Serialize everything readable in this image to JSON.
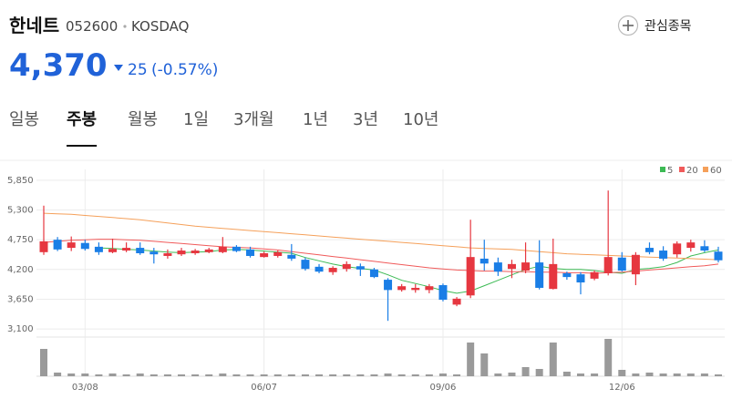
{
  "header": {
    "name": "한네트",
    "code": "052600",
    "market": "KOSDAQ",
    "watch": "관심종목",
    "price": "4,370",
    "change": "25",
    "change_pct": "(-0.57%)"
  },
  "tabs": {
    "items": [
      "일봉",
      "주봉",
      "월봉",
      "1일",
      "3개월",
      "1년",
      "3년",
      "10년"
    ],
    "selected": 1
  },
  "chart_data": {
    "type": "candlestick",
    "categories": [
      null,
      null,
      null,
      "03/08",
      null,
      null,
      null,
      null,
      null,
      null,
      null,
      null,
      null,
      null,
      null,
      null,
      "06/07",
      null,
      null,
      null,
      null,
      null,
      null,
      null,
      null,
      null,
      null,
      null,
      null,
      "09/06",
      null,
      null,
      null,
      null,
      null,
      null,
      null,
      null,
      null,
      null,
      null,
      null,
      "12/06",
      null,
      null,
      null,
      null,
      null,
      null,
      null
    ],
    "open": [
      4520,
      4750,
      4600,
      4690,
      4620,
      4520,
      4550,
      4600,
      4530,
      4450,
      4480,
      4500,
      4520,
      4520,
      4620,
      4570,
      4430,
      4450,
      4470,
      4380,
      4250,
      4150,
      4210,
      4260,
      4200,
      4010,
      3820,
      3820,
      3820,
      3910,
      3550,
      3720,
      4400,
      4330,
      4210,
      4180,
      4330,
      3840,
      4130,
      4110,
      4030,
      4130,
      4420,
      4110,
      4600,
      4550,
      4480,
      4600,
      4630,
      4530
    ],
    "high": [
      5380,
      4800,
      4810,
      4750,
      4700,
      4770,
      4700,
      4700,
      4600,
      4570,
      4600,
      4580,
      4600,
      4800,
      4650,
      4620,
      4530,
      4550,
      4670,
      4420,
      4300,
      4260,
      4350,
      4310,
      4230,
      4040,
      3930,
      3930,
      3930,
      3940,
      3690,
      5120,
      4750,
      4420,
      4380,
      4700,
      4740,
      4770,
      4160,
      4150,
      4180,
      5660,
      4520,
      4520,
      4700,
      4630,
      4720,
      4750,
      4740,
      4620
    ],
    "low": [
      4470,
      4540,
      4540,
      4550,
      4470,
      4500,
      4520,
      4470,
      4310,
      4400,
      4450,
      4470,
      4500,
      4500,
      4520,
      4420,
      4420,
      4420,
      4360,
      4180,
      4130,
      4100,
      4160,
      4080,
      4040,
      3250,
      3790,
      3770,
      3760,
      3610,
      3520,
      3670,
      4180,
      4080,
      4040,
      4130,
      3830,
      3830,
      4010,
      3740,
      4000,
      4090,
      4160,
      3910,
      4480,
      4360,
      4420,
      4530,
      4520,
      4330
    ],
    "close": [
      4720,
      4570,
      4700,
      4580,
      4520,
      4580,
      4600,
      4500,
      4480,
      4500,
      4550,
      4550,
      4570,
      4620,
      4540,
      4450,
      4500,
      4520,
      4400,
      4210,
      4160,
      4230,
      4300,
      4200,
      4060,
      3820,
      3890,
      3860,
      3890,
      3640,
      3660,
      4430,
      4310,
      4160,
      4300,
      4330,
      3860,
      4300,
      4060,
      3960,
      4150,
      4430,
      4180,
      4470,
      4520,
      4400,
      4680,
      4700,
      4550,
      4370
    ],
    "up_color": "#e63740",
    "down_color": "#1a7ee6",
    "series": [
      {
        "name": "5",
        "color": "#3cba54",
        "values": [
          null,
          null,
          null,
          null,
          4600,
          4590,
          4570,
          4560,
          4540,
          4520,
          4510,
          4520,
          4530,
          4560,
          4570,
          4560,
          4540,
          4520,
          4500,
          4420,
          4360,
          4300,
          4250,
          4220,
          4190,
          4100,
          4000,
          3940,
          3880,
          3810,
          3760,
          3800,
          3900,
          4000,
          4100,
          4200,
          4260,
          4220,
          4200,
          4200,
          4180,
          4150,
          4130,
          4200,
          4220,
          4250,
          4330,
          4450,
          4510,
          4560
        ]
      },
      {
        "name": "20",
        "color": "#f05a5a",
        "values": [
          4700,
          4720,
          4740,
          4750,
          4760,
          4760,
          4750,
          4740,
          4720,
          4700,
          4680,
          4660,
          4640,
          4620,
          4610,
          4600,
          4580,
          4560,
          4530,
          4500,
          4470,
          4440,
          4410,
          4380,
          4350,
          4320,
          4290,
          4260,
          4230,
          4210,
          4190,
          4180,
          4170,
          4170,
          4160,
          4160,
          4150,
          4150,
          4140,
          4140,
          4130,
          4140,
          4150,
          4170,
          4190,
          4210,
          4230,
          4250,
          4270,
          4300
        ]
      },
      {
        "name": "60",
        "color": "#f5a05a",
        "values": [
          5240,
          5230,
          5220,
          5200,
          5180,
          5160,
          5140,
          5120,
          5090,
          5060,
          5030,
          5000,
          4980,
          4960,
          4940,
          4920,
          4900,
          4880,
          4860,
          4840,
          4820,
          4800,
          4780,
          4760,
          4740,
          4720,
          4700,
          4680,
          4660,
          4640,
          4620,
          4600,
          4590,
          4580,
          4570,
          4550,
          4530,
          4510,
          4490,
          4480,
          4470,
          4460,
          4450,
          4440,
          4430,
          4420,
          4410,
          4400,
          4390,
          4380
        ]
      }
    ],
    "volume": {
      "color": "#9a9a9a",
      "ylim": [
        0,
        42
      ],
      "values": [
        30,
        4,
        3,
        3,
        2,
        3,
        2,
        3,
        2,
        2,
        2,
        2,
        2,
        3,
        2,
        2,
        2,
        2,
        2,
        2,
        2,
        2,
        2,
        2,
        2,
        3,
        2,
        2,
        2,
        3,
        2,
        37,
        25,
        3,
        4,
        10,
        8,
        37,
        5,
        3,
        3,
        41,
        7,
        3,
        4,
        3,
        3,
        3,
        3,
        2
      ]
    },
    "ylim": [
      2950,
      6050
    ],
    "yticks": [
      {
        "value": 3100,
        "label": "3,100"
      },
      {
        "value": 3650,
        "label": "3,650"
      },
      {
        "value": 4200,
        "label": "4,200"
      },
      {
        "value": 4750,
        "label": "4,750"
      },
      {
        "value": 5300,
        "label": "5,300"
      },
      {
        "value": 5850,
        "label": "5,850"
      }
    ],
    "grid": true
  }
}
